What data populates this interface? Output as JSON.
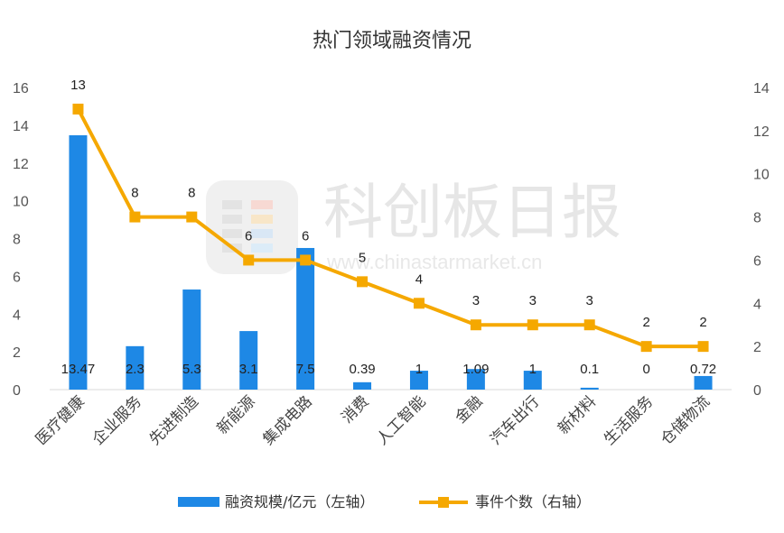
{
  "chart_data": {
    "type": "bar+line",
    "title": "热门领域融资情况",
    "categories": [
      "医疗健康",
      "企业服务",
      "先进制造",
      "新能源",
      "集成电路",
      "消费",
      "人工智能",
      "金融",
      "汽车出行",
      "新材料",
      "生活服务",
      "仓储物流"
    ],
    "series": [
      {
        "name": "融资规模/亿元（左轴）",
        "type": "bar",
        "axis": "left",
        "color": "#1e88e5",
        "values": [
          13.47,
          2.3,
          5.3,
          3.1,
          7.5,
          0.39,
          1,
          1.09,
          1,
          0.1,
          0,
          0.72
        ],
        "labels": [
          "13.47",
          "2.3",
          "5.3",
          "3.1",
          "7.5",
          "0.39",
          "1",
          "1.09",
          "1",
          "0.1",
          "0",
          "0.72"
        ]
      },
      {
        "name": "事件个数（右轴）",
        "type": "line",
        "axis": "right",
        "color": "#f5a800",
        "values": [
          13,
          8,
          8,
          6,
          6,
          5,
          4,
          3,
          3,
          3,
          2,
          2
        ],
        "labels": [
          "13",
          "8",
          "8",
          "6",
          "6",
          "5",
          "4",
          "3",
          "3",
          "3",
          "2",
          "2"
        ]
      }
    ],
    "y_left": {
      "min": 0,
      "max": 16,
      "ticks": [
        "0",
        "2",
        "4",
        "6",
        "8",
        "10",
        "12",
        "14",
        "16"
      ]
    },
    "y_right": {
      "min": 0,
      "max": 14,
      "ticks": [
        "0",
        "2",
        "4",
        "6",
        "8",
        "10",
        "12",
        "14"
      ]
    },
    "grid": false,
    "legend_position": "bottom"
  },
  "watermark": {
    "text": "科创板日报",
    "url": "www.chinastarmarket.cn"
  }
}
